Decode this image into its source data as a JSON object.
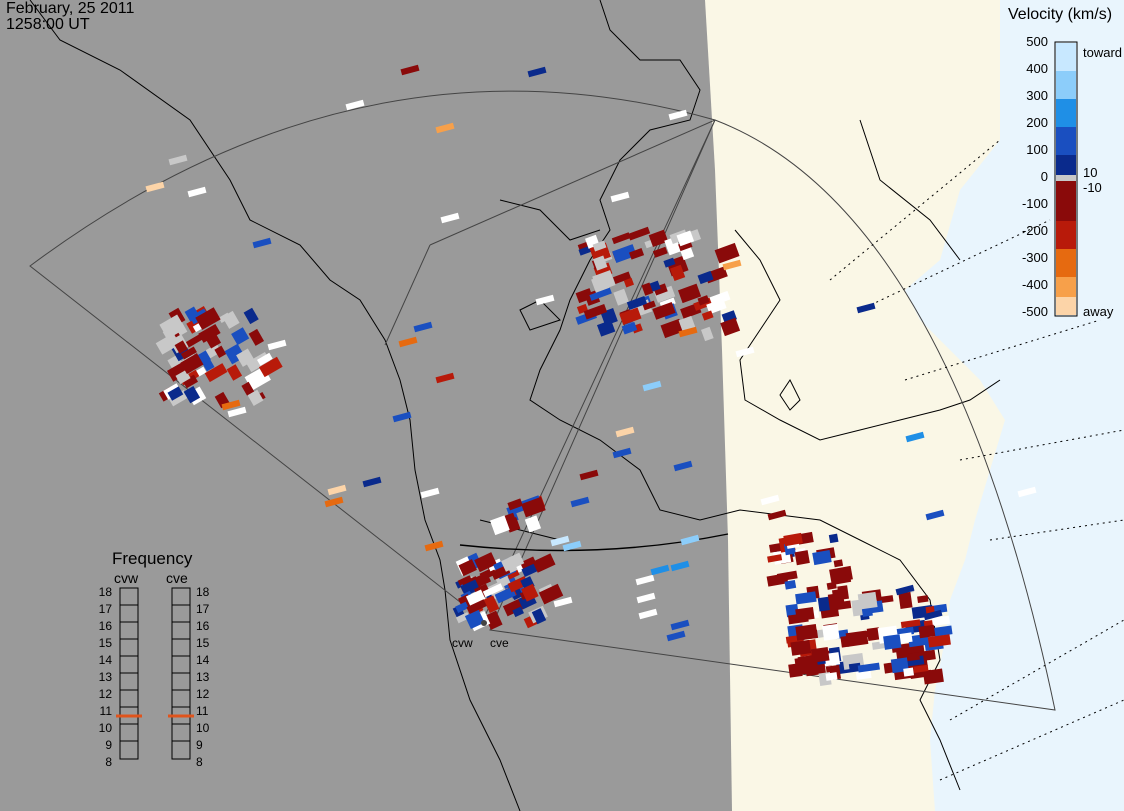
{
  "header": {
    "date": "February, 25 2011",
    "time": "1258:00 UT"
  },
  "legend": {
    "title": "Velocity (km/s)",
    "ticks": [
      "500",
      "400",
      "300",
      "200",
      "100",
      "0",
      "-100",
      "-200",
      "-300",
      "-400",
      "-500"
    ],
    "toward_label": "toward",
    "away_label": "away",
    "plus10_label": "10",
    "minus10_label": "-10",
    "colors": {
      "toward_light": "#c8e8ff",
      "toward_mid": "#1f8fe6",
      "toward_dark": "#0a2a8c",
      "zero_band": "#c8c8c8",
      "away_dark": "#8a0a0a",
      "away_mid": "#e66a10",
      "away_light": "#fcd4a8"
    }
  },
  "frequency_panel": {
    "title": "Frequency",
    "radars": [
      "cvw",
      "cve"
    ],
    "scale": [
      "18",
      "17",
      "16",
      "15",
      "14",
      "13",
      "12",
      "11",
      "10",
      "9",
      "8"
    ],
    "cvw_marker_mhz": 10.7,
    "cve_marker_mhz": 10.7,
    "marker_color": "#e0541c"
  },
  "stations": {
    "west": "cvw",
    "east": "cve"
  },
  "map_colors": {
    "night": "#9a9a9a",
    "day_land": "#faf7e6",
    "day_ocean": "#e9f5fd"
  }
}
